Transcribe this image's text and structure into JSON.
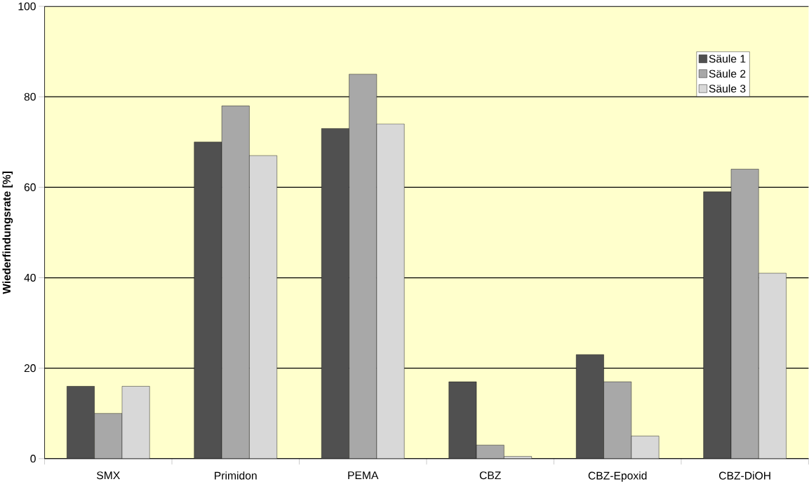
{
  "chart_data": {
    "type": "bar",
    "ylabel": "Wiederfindungsrate [%]",
    "categories": [
      "SMX",
      "Primidon",
      "PEMA",
      "CBZ",
      "CBZ-Epoxid",
      "CBZ-DiOH"
    ],
    "series": [
      {
        "name": "Säule 1",
        "color": "#505050",
        "values": [
          16,
          70,
          73,
          17,
          23,
          59
        ]
      },
      {
        "name": "Säule 2",
        "color": "#a8a8a8",
        "values": [
          10,
          78,
          85,
          3,
          17,
          64
        ]
      },
      {
        "name": "Säule 3",
        "color": "#d8d8d8",
        "values": [
          16,
          67,
          74,
          0.5,
          5,
          41
        ]
      }
    ],
    "ylim": [
      0,
      100
    ],
    "yticks": [
      0,
      20,
      40,
      60,
      80,
      100
    ],
    "grid": "y",
    "legend": "top right"
  }
}
